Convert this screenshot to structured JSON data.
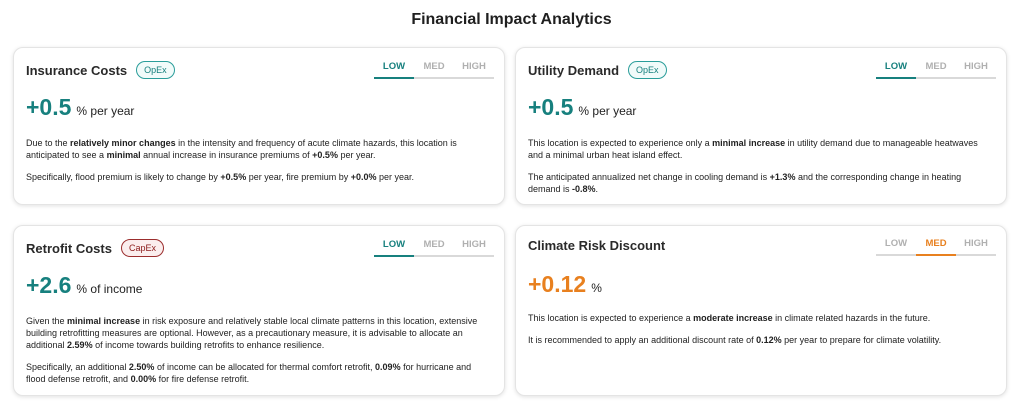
{
  "page": {
    "title": "Financial Impact Analytics"
  },
  "colors": {
    "teal": "#17807e",
    "orange": "#e8801f",
    "capex_red": "#8b1a1a",
    "inactive_tab": "#b0b0b0"
  },
  "cards": [
    {
      "title": "Insurance Costs",
      "badge": "OpEx",
      "tabs": [
        "LOW",
        "MED",
        "HIGH"
      ],
      "active_tab": "LOW",
      "value": "+0.5",
      "unit": "% per year",
      "paragraphs": [
        [
          {
            "t": "Due to the "
          },
          {
            "t": "relatively minor changes",
            "b": true
          },
          {
            "t": " in the intensity and frequency of acute climate hazards, this location is anticipated to see a "
          },
          {
            "t": "minimal",
            "b": true
          },
          {
            "t": " annual increase in insurance premiums of "
          },
          {
            "t": "+0.5%",
            "b": true
          },
          {
            "t": " per year."
          }
        ],
        [
          {
            "t": "Specifically, flood premium is likely to change by "
          },
          {
            "t": "+0.5%",
            "b": true
          },
          {
            "t": " per year, fire premium by "
          },
          {
            "t": "+0.0%",
            "b": true
          },
          {
            "t": " per year."
          }
        ]
      ]
    },
    {
      "title": "Utility Demand",
      "badge": "OpEx",
      "tabs": [
        "LOW",
        "MED",
        "HIGH"
      ],
      "active_tab": "LOW",
      "value": "+0.5",
      "unit": "% per year",
      "paragraphs": [
        [
          {
            "t": "This location is expected to experience only a "
          },
          {
            "t": "minimal increase",
            "b": true
          },
          {
            "t": " in utility demand due to manageable heatwaves and a minimal urban heat island effect."
          }
        ],
        [
          {
            "t": "The anticipated annualized net change in cooling demand is "
          },
          {
            "t": "+1.3%",
            "b": true
          },
          {
            "t": " and the corresponding change in heating demand is "
          },
          {
            "t": "-0.8%",
            "b": true
          },
          {
            "t": "."
          }
        ]
      ]
    },
    {
      "title": "Retrofit Costs",
      "badge": "CapEx",
      "tabs": [
        "LOW",
        "MED",
        "HIGH"
      ],
      "active_tab": "LOW",
      "value": "+2.6",
      "unit": "% of income",
      "paragraphs": [
        [
          {
            "t": "Given the "
          },
          {
            "t": "minimal increase",
            "b": true
          },
          {
            "t": " in risk exposure and relatively stable local climate patterns in this location, extensive building retrofitting measures are optional. However, as a precautionary measure, it is advisable to allocate an additional "
          },
          {
            "t": "2.59%",
            "b": true
          },
          {
            "t": " of income towards building retrofits to enhance resilience."
          }
        ],
        [
          {
            "t": "Specifically, an additional "
          },
          {
            "t": "2.50%",
            "b": true
          },
          {
            "t": " of income can be allocated for thermal comfort retrofit, "
          },
          {
            "t": "0.09%",
            "b": true
          },
          {
            "t": " for hurricane and flood defense retrofit, and "
          },
          {
            "t": "0.00%",
            "b": true
          },
          {
            "t": " for fire defense retrofit."
          }
        ]
      ]
    },
    {
      "title": "Climate Risk Discount",
      "badge": null,
      "tabs": [
        "LOW",
        "MED",
        "HIGH"
      ],
      "active_tab": "MED",
      "value": "+0.12",
      "unit": "%",
      "paragraphs": [
        [
          {
            "t": "This location is expected to experience a "
          },
          {
            "t": "moderate increase",
            "b": true
          },
          {
            "t": " in climate related hazards in the future."
          }
        ],
        [
          {
            "t": "It is recommended to apply an additional discount rate of "
          },
          {
            "t": "0.12%",
            "b": true
          },
          {
            "t": " per year to prepare for climate volatility."
          }
        ]
      ]
    }
  ]
}
